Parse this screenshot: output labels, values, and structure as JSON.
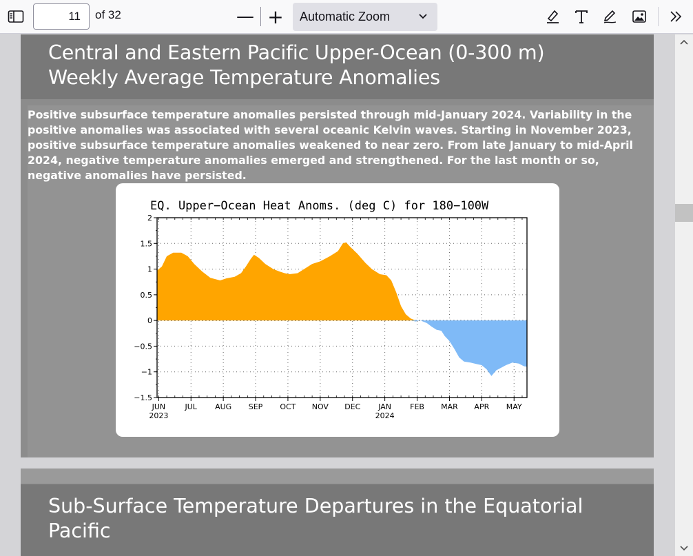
{
  "toolbar": {
    "page_number": "11",
    "page_count": "of 32",
    "zoom_out_glyph": "—",
    "zoom_in_glyph": "+",
    "zoom_value": "Automatic Zoom",
    "icons": [
      "sidebar-toggle-icon",
      "highlight-icon",
      "text-icon",
      "draw-icon",
      "image-icon",
      "more-tools-icon"
    ]
  },
  "page1": {
    "title_line1": "Central and Eastern Pacific Upper-Ocean (0-300 m)",
    "title_line2": "Weekly Average Temperature Anomalies",
    "body_text": "Positive subsurface temperature anomalies persisted through mid-January 2024.  Variability in the positive anomalies was associated with several oceanic Kelvin waves.  Starting in November 2023, positive subsurface temperature anomalies weakened to near zero.  From late January to mid-April 2024, negative temperature anomalies emerged and strengthened.  For the last month or so, negative anomalies have persisted."
  },
  "chart_data": {
    "type": "area",
    "title": "EQ. Upper−Ocean Heat Anoms. (deg C) for 180−100W",
    "xlabel": "",
    "ylabel": "",
    "ylim": [
      -1.5,
      2
    ],
    "yticks": [
      "2",
      "1.5",
      "1",
      "0.5",
      "0",
      "−0.5",
      "−1",
      "−1.5"
    ],
    "ytick_values": [
      2,
      1.5,
      1,
      0.5,
      0,
      -0.5,
      -1,
      -1.5
    ],
    "xticks": [
      {
        "label": "JUN",
        "sub": "2023"
      },
      {
        "label": "JUL",
        "sub": ""
      },
      {
        "label": "AUG",
        "sub": ""
      },
      {
        "label": "SEP",
        "sub": ""
      },
      {
        "label": "OCT",
        "sub": ""
      },
      {
        "label": "NOV",
        "sub": ""
      },
      {
        "label": "DEC",
        "sub": ""
      },
      {
        "label": "JAN",
        "sub": "2024"
      },
      {
        "label": "FEB",
        "sub": ""
      },
      {
        "label": "MAR",
        "sub": ""
      },
      {
        "label": "APR",
        "sub": ""
      },
      {
        "label": "MAY",
        "sub": ""
      }
    ],
    "grid": true,
    "positive_color": "#ffa500",
    "negative_color": "#7fbaf7",
    "x_unit": "months since 2023-06-01",
    "x_range": [
      -0.05,
      11.4
    ],
    "series": [
      {
        "x": -0.05,
        "y": 0.97
      },
      {
        "x": 0.1,
        "y": 1.05
      },
      {
        "x": 0.25,
        "y": 1.25
      },
      {
        "x": 0.45,
        "y": 1.32
      },
      {
        "x": 0.7,
        "y": 1.32
      },
      {
        "x": 0.9,
        "y": 1.25
      },
      {
        "x": 1.1,
        "y": 1.1
      },
      {
        "x": 1.35,
        "y": 0.95
      },
      {
        "x": 1.6,
        "y": 0.83
      },
      {
        "x": 1.9,
        "y": 0.78
      },
      {
        "x": 2.1,
        "y": 0.82
      },
      {
        "x": 2.35,
        "y": 0.85
      },
      {
        "x": 2.55,
        "y": 0.92
      },
      {
        "x": 2.7,
        "y": 1.05
      },
      {
        "x": 2.85,
        "y": 1.2
      },
      {
        "x": 2.95,
        "y": 1.28
      },
      {
        "x": 3.1,
        "y": 1.22
      },
      {
        "x": 3.3,
        "y": 1.1
      },
      {
        "x": 3.55,
        "y": 1.0
      },
      {
        "x": 3.75,
        "y": 0.95
      },
      {
        "x": 3.9,
        "y": 0.92
      },
      {
        "x": 4.05,
        "y": 0.9
      },
      {
        "x": 4.3,
        "y": 0.92
      },
      {
        "x": 4.55,
        "y": 1.02
      },
      {
        "x": 4.75,
        "y": 1.1
      },
      {
        "x": 5.0,
        "y": 1.15
      },
      {
        "x": 5.3,
        "y": 1.25
      },
      {
        "x": 5.55,
        "y": 1.35
      },
      {
        "x": 5.7,
        "y": 1.5
      },
      {
        "x": 5.8,
        "y": 1.52
      },
      {
        "x": 5.95,
        "y": 1.42
      },
      {
        "x": 6.15,
        "y": 1.3
      },
      {
        "x": 6.4,
        "y": 1.12
      },
      {
        "x": 6.6,
        "y": 1.0
      },
      {
        "x": 6.85,
        "y": 0.9
      },
      {
        "x": 7.05,
        "y": 0.88
      },
      {
        "x": 7.2,
        "y": 0.78
      },
      {
        "x": 7.35,
        "y": 0.55
      },
      {
        "x": 7.5,
        "y": 0.28
      },
      {
        "x": 7.65,
        "y": 0.12
      },
      {
        "x": 7.8,
        "y": 0.04
      },
      {
        "x": 7.95,
        "y": -0.02
      },
      {
        "x": 8.1,
        "y": 0.0
      },
      {
        "x": 8.3,
        "y": -0.05
      },
      {
        "x": 8.45,
        "y": -0.12
      },
      {
        "x": 8.6,
        "y": -0.18
      },
      {
        "x": 8.75,
        "y": -0.2
      },
      {
        "x": 8.85,
        "y": -0.3
      },
      {
        "x": 9.0,
        "y": -0.4
      },
      {
        "x": 9.15,
        "y": -0.55
      },
      {
        "x": 9.3,
        "y": -0.72
      },
      {
        "x": 9.45,
        "y": -0.8
      },
      {
        "x": 9.65,
        "y": -0.82
      },
      {
        "x": 9.85,
        "y": -0.85
      },
      {
        "x": 10.0,
        "y": -0.87
      },
      {
        "x": 10.15,
        "y": -0.95
      },
      {
        "x": 10.3,
        "y": -1.08
      },
      {
        "x": 10.45,
        "y": -0.97
      },
      {
        "x": 10.6,
        "y": -0.92
      },
      {
        "x": 10.75,
        "y": -0.87
      },
      {
        "x": 10.95,
        "y": -0.82
      },
      {
        "x": 11.15,
        "y": -0.84
      },
      {
        "x": 11.3,
        "y": -0.89
      },
      {
        "x": 11.4,
        "y": -0.9
      }
    ]
  },
  "page2": {
    "title_line1": "Sub-Surface Temperature Departures in the Equatorial",
    "title_line2": "Pacific"
  }
}
